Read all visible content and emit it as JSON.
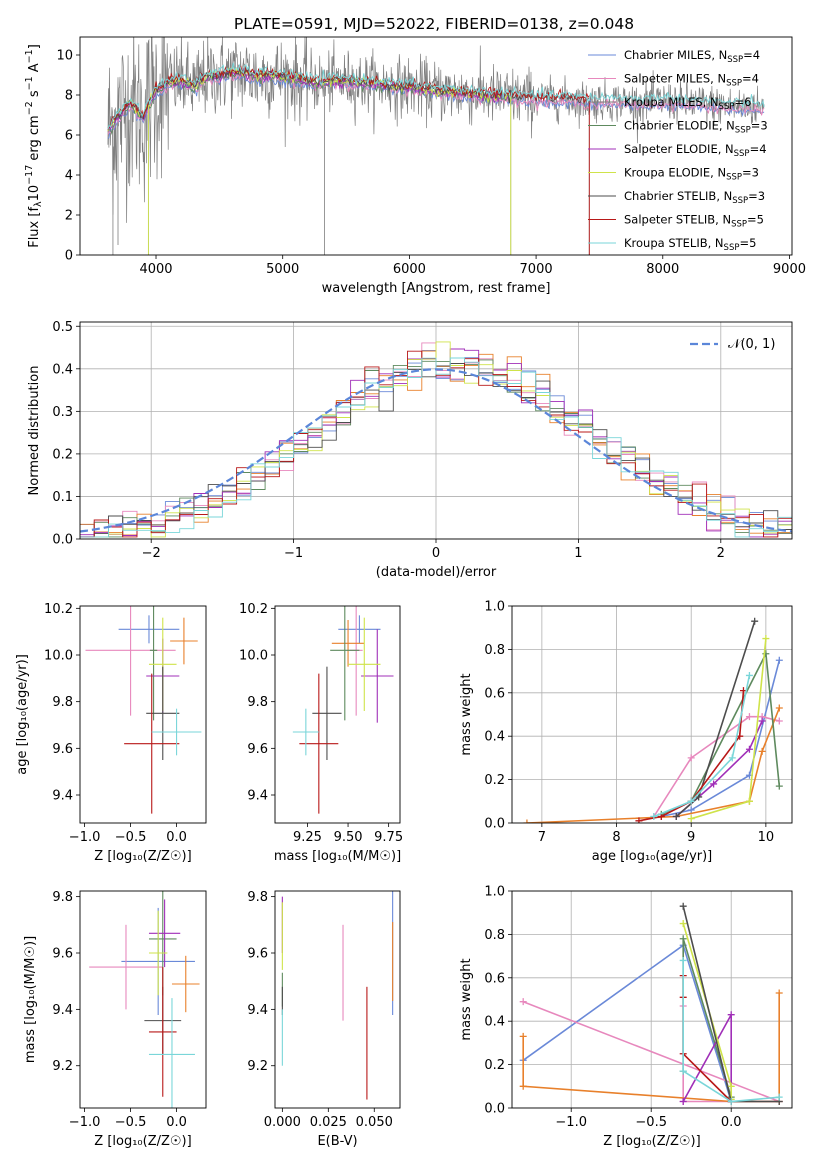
{
  "figure_title": "PLATE=0591, MJD=52022, FIBERID=0138, z=0.048",
  "colors": {
    "Chabrier MILES": "#6a89d8",
    "Salpeter MILES": "#e788bd",
    "Kroupa MILES": "#7f7f7f",
    "Chabrier ELODIE": "#5e8a5e",
    "Salpeter ELODIE": "#a02fb8",
    "Kroupa ELODIE": "#cfe34a",
    "Chabrier STELIB": "#4d4d4d",
    "Salpeter STELIB": "#b81818",
    "Kroupa STELIB": "#7ad6d9",
    "Orange": "#e8802b",
    "Normal": "#5b86d9"
  },
  "chart_data": [
    {
      "id": "spectrum",
      "type": "line",
      "xlabel": "wavelength [Angstrom, rest frame]",
      "ylabel_parts": [
        "Flux [f",
        "λ",
        "10",
        "−17",
        " erg cm",
        "−2",
        " s",
        "−1",
        " A",
        "−1",
        "]"
      ],
      "xlim": [
        3400,
        9020
      ],
      "ylim": [
        0,
        10.9
      ],
      "xticks": [
        4000,
        5000,
        6000,
        7000,
        8000,
        9000
      ],
      "yticks": [
        0,
        2,
        4,
        6,
        8,
        10
      ],
      "continuum": {
        "x": [
          3620,
          3700,
          3800,
          3900,
          3950,
          4000,
          4100,
          4200,
          4300,
          4400,
          4500,
          4600,
          4700,
          4800,
          4900,
          5000,
          5100,
          5200,
          5300,
          5400,
          5500,
          5600,
          5700,
          5800,
          5900,
          6000,
          6200,
          6400,
          6600,
          6800,
          7000,
          7200,
          7400,
          7600,
          7800,
          8000,
          8200,
          8400,
          8600,
          8800
        ],
        "y": [
          6.2,
          6.9,
          7.6,
          6.9,
          7.6,
          8.2,
          8.6,
          8.7,
          8.4,
          8.9,
          9.0,
          9.1,
          9.1,
          8.9,
          9.0,
          8.9,
          8.8,
          8.7,
          8.6,
          8.7,
          8.7,
          8.6,
          8.6,
          8.5,
          8.4,
          8.4,
          8.2,
          8.1,
          8.0,
          7.9,
          7.8,
          7.8,
          7.7,
          7.7,
          7.6,
          7.7,
          7.6,
          7.5,
          7.4,
          7.4
        ]
      },
      "legend": [
        {
          "base": "Chabrier MILES, N",
          "sub": "SSP",
          "tail": "=4"
        },
        {
          "base": "Salpeter MILES, N",
          "sub": "SSP",
          "tail": "=4"
        },
        {
          "base": "Kroupa MILES, N",
          "sub": "SSP",
          "tail": "=6"
        },
        {
          "base": "Chabrier ELODIE, N",
          "sub": "SSP",
          "tail": "=3"
        },
        {
          "base": "Salpeter ELODIE, N",
          "sub": "SSP",
          "tail": "=4"
        },
        {
          "base": "Kroupa ELODIE, N",
          "sub": "SSP",
          "tail": "=3"
        },
        {
          "base": "Chabrier STELIB, N",
          "sub": "SSP",
          "tail": "=3"
        },
        {
          "base": "Salpeter STELIB, N",
          "sub": "SSP",
          "tail": "=5"
        },
        {
          "base": "Kroupa STELIB, N",
          "sub": "SSP",
          "tail": "=5"
        }
      ]
    },
    {
      "id": "residuals",
      "type": "line",
      "xlabel": "(data-model)/error",
      "ylabel": "Normed distribution",
      "xlim": [
        -2.5,
        2.5
      ],
      "ylim": [
        0,
        0.51
      ],
      "xticks": [
        -2,
        -1,
        0,
        1,
        2
      ],
      "xticklabels": [
        "−2",
        "−1",
        "0",
        "1",
        "2"
      ],
      "yticks": [
        0.0,
        0.1,
        0.2,
        0.3,
        0.4,
        0.5
      ],
      "yticklabels": [
        "0.0",
        "0.1",
        "0.2",
        "0.3",
        "0.4",
        "0.5"
      ],
      "bin_width": 0.1,
      "normal_label": "𝒩(0, 1)"
    },
    {
      "id": "z_age",
      "type": "scatter",
      "xlabel": "Z [log₁₀(Z/Z☉)]",
      "ylabel": "age  [log₁₀(age/yr)]",
      "xlim": [
        -1.05,
        0.32
      ],
      "ylim": [
        9.28,
        10.21
      ],
      "xticks": [
        -1.0,
        -0.5,
        0.0
      ],
      "xticklabels": [
        "−1.0",
        "−0.5",
        "0.0"
      ],
      "yticks": [
        9.4,
        9.6,
        9.8,
        10.0,
        10.2
      ],
      "yticklabels": [
        "9.4",
        "9.6",
        "9.8",
        "10.0",
        "10.2"
      ],
      "points": [
        {
          "model": "Chabrier MILES",
          "x": -0.3,
          "y": 10.11,
          "xerr": 0.33,
          "yerr": 0.06
        },
        {
          "model": "Salpeter MILES",
          "x": -0.5,
          "y": 10.02,
          "xerr": 0.49,
          "yerr": 0.28
        },
        {
          "model": "Orange",
          "x": 0.08,
          "y": 10.06,
          "xerr": 0.15,
          "yerr": 0.1
        },
        {
          "model": "Chabrier ELODIE",
          "x": -0.25,
          "y": 10.02,
          "xerr": 0.04,
          "yerr": 0.3
        },
        {
          "model": "Salpeter ELODIE",
          "x": -0.15,
          "y": 9.91,
          "xerr": 0.18,
          "yerr": 0.16
        },
        {
          "model": "Kroupa ELODIE",
          "x": -0.15,
          "y": 9.96,
          "xerr": 0.15,
          "yerr": 0.2
        },
        {
          "model": "Chabrier STELIB",
          "x": -0.15,
          "y": 9.75,
          "xerr": 0.18,
          "yerr": 0.2
        },
        {
          "model": "Salpeter STELIB",
          "x": -0.27,
          "y": 9.62,
          "xerr": 0.3,
          "yerr": 0.3
        },
        {
          "model": "Kroupa STELIB",
          "x": 0.0,
          "y": 9.67,
          "xerr": 0.27,
          "yerr": 0.1
        }
      ]
    },
    {
      "id": "mass_age",
      "type": "scatter",
      "xlabel": "mass [log₁₀(M/M☉)]",
      "xlim": [
        9.05,
        9.82
      ],
      "ylim": [
        9.28,
        10.21
      ],
      "xticks": [
        9.25,
        9.5,
        9.75
      ],
      "xticklabels": [
        "9.25",
        "9.50",
        "9.75"
      ],
      "yticks": [
        9.4,
        9.6,
        9.8,
        10.0,
        10.2
      ],
      "yticklabels": [
        "9.4",
        "9.6",
        "9.8",
        "10.0",
        "10.2"
      ],
      "points": [
        {
          "model": "Chabrier MILES",
          "x": 9.57,
          "y": 10.11,
          "xerr": 0.13,
          "yerr": 0.06
        },
        {
          "model": "Salpeter MILES",
          "x": 9.55,
          "y": 10.02,
          "xerr": 0.04,
          "yerr": 0.28
        },
        {
          "model": "Orange",
          "x": 9.5,
          "y": 10.05,
          "xerr": 0.1,
          "yerr": 0.1
        },
        {
          "model": "Chabrier ELODIE",
          "x": 9.48,
          "y": 10.02,
          "xerr": 0.09,
          "yerr": 0.3
        },
        {
          "model": "Salpeter ELODIE",
          "x": 9.68,
          "y": 9.91,
          "xerr": 0.1,
          "yerr": 0.2
        },
        {
          "model": "Kroupa ELODIE",
          "x": 9.6,
          "y": 9.96,
          "xerr": 0.1,
          "yerr": 0.2
        },
        {
          "model": "Chabrier STELIB",
          "x": 9.37,
          "y": 9.75,
          "xerr": 0.09,
          "yerr": 0.2
        },
        {
          "model": "Salpeter STELIB",
          "x": 9.32,
          "y": 9.62,
          "xerr": 0.12,
          "yerr": 0.3
        },
        {
          "model": "Kroupa STELIB",
          "x": 9.24,
          "y": 9.67,
          "xerr": 0.08,
          "yerr": 0.1
        }
      ]
    },
    {
      "id": "age_weight",
      "type": "line",
      "xlabel": "age  [log₁₀(age/yr)]",
      "ylabel": "mass weight",
      "xlim": [
        6.6,
        10.35
      ],
      "ylim": [
        0,
        1.0
      ],
      "xticks": [
        7,
        8,
        9,
        10
      ],
      "yticks": [
        0.0,
        0.2,
        0.4,
        0.6,
        0.8,
        1.0
      ],
      "yticklabels": [
        "0.0",
        "0.2",
        "0.4",
        "0.6",
        "0.8",
        "1.0"
      ],
      "series": [
        {
          "model": "Chabrier MILES",
          "x": [
            8.6,
            9.0,
            9.78,
            10.18
          ],
          "y": [
            0.03,
            0.06,
            0.22,
            0.75
          ]
        },
        {
          "model": "Salpeter MILES",
          "x": [
            8.5,
            9.0,
            9.78,
            9.95,
            10.18
          ],
          "y": [
            0.03,
            0.3,
            0.49,
            0.49,
            0.47
          ]
        },
        {
          "model": "Orange",
          "x": [
            6.8,
            8.8,
            9.78,
            9.95,
            10.18
          ],
          "y": [
            0.0,
            0.03,
            0.1,
            0.33,
            0.53
          ]
        },
        {
          "model": "Chabrier ELODIE",
          "x": [
            8.6,
            9.0,
            10.0,
            10.18
          ],
          "y": [
            0.04,
            0.1,
            0.78,
            0.17
          ]
        },
        {
          "model": "Salpeter ELODIE",
          "x": [
            8.8,
            9.3,
            9.78,
            9.95
          ],
          "y": [
            0.03,
            0.18,
            0.34,
            0.47
          ]
        },
        {
          "model": "Kroupa ELODIE",
          "x": [
            9.0,
            9.78,
            10.0
          ],
          "y": [
            0.02,
            0.1,
            0.85
          ]
        },
        {
          "model": "Chabrier STELIB",
          "x": [
            8.8,
            9.1,
            9.85
          ],
          "y": [
            0.03,
            0.12,
            0.93
          ]
        },
        {
          "model": "Salpeter STELIB",
          "x": [
            8.3,
            8.6,
            9.0,
            9.65,
            9.7
          ],
          "y": [
            0.01,
            0.03,
            0.1,
            0.4,
            0.61
          ]
        },
        {
          "model": "Kroupa STELIB",
          "x": [
            8.5,
            9.0,
            9.55,
            9.78
          ],
          "y": [
            0.03,
            0.1,
            0.3,
            0.68
          ]
        }
      ]
    },
    {
      "id": "z_mass",
      "type": "scatter",
      "xlabel": "Z [log₁₀(Z/Z☉)]",
      "ylabel": "mass [log₁₀(M/M☉)]",
      "xlim": [
        -1.05,
        0.32
      ],
      "ylim": [
        9.05,
        9.82
      ],
      "xticks": [
        -1.0,
        -0.5,
        0.0
      ],
      "xticklabels": [
        "−1.0",
        "−0.5",
        "0.0"
      ],
      "yticks": [
        9.2,
        9.4,
        9.6,
        9.8
      ],
      "yticklabels": [
        "9.2",
        "9.4",
        "9.6",
        "9.8"
      ],
      "points": [
        {
          "model": "Chabrier MILES",
          "x": -0.2,
          "y": 9.57,
          "xerr": 0.4,
          "yerr": 0.19
        },
        {
          "model": "Salpeter MILES",
          "x": -0.55,
          "y": 9.55,
          "xerr": 0.4,
          "yerr": 0.15
        },
        {
          "model": "Orange",
          "x": 0.1,
          "y": 9.49,
          "xerr": 0.15,
          "yerr": 0.1
        },
        {
          "model": "Chabrier ELODIE",
          "x": -0.15,
          "y": 9.65,
          "xerr": 0.15,
          "yerr": 0.2
        },
        {
          "model": "Salpeter ELODIE",
          "x": -0.13,
          "y": 9.67,
          "xerr": 0.17,
          "yerr": 0.12
        },
        {
          "model": "Kroupa ELODIE",
          "x": -0.2,
          "y": 9.6,
          "xerr": 0.1,
          "yerr": 0.15
        },
        {
          "model": "Chabrier STELIB",
          "x": -0.15,
          "y": 9.36,
          "xerr": 0.2,
          "yerr": 0.12
        },
        {
          "model": "Salpeter STELIB",
          "x": -0.15,
          "y": 9.32,
          "xerr": 0.15,
          "yerr": 0.23
        },
        {
          "model": "Kroupa STELIB",
          "x": -0.05,
          "y": 9.24,
          "xerr": 0.25,
          "yerr": 0.2
        }
      ]
    },
    {
      "id": "ebv_mass",
      "type": "scatter",
      "xlabel": "E(B-V)",
      "xlim": [
        -0.004,
        0.064
      ],
      "ylim": [
        9.05,
        9.82
      ],
      "xticks": [
        0.0,
        0.025,
        0.05
      ],
      "xticklabels": [
        "0.000",
        "0.025",
        "0.050"
      ],
      "yticks": [
        9.2,
        9.4,
        9.6,
        9.8
      ],
      "yticklabels": [
        "9.2",
        "9.4",
        "9.6",
        "9.8"
      ],
      "points": [
        {
          "model": "Chabrier MILES",
          "x": 0.06,
          "y": 9.6,
          "xerr": 0,
          "yerr": 0.22
        },
        {
          "model": "Salpeter MILES",
          "x": 0.033,
          "y": 9.53,
          "xerr": 0,
          "yerr": 0.17
        },
        {
          "model": "Orange",
          "x": 0.06,
          "y": 9.57,
          "xerr": 0,
          "yerr": 0.14
        },
        {
          "model": "Chabrier ELODIE",
          "x": 0.0,
          "y": 9.47,
          "xerr": 0,
          "yerr": 0.06
        },
        {
          "model": "Salpeter ELODIE",
          "x": 0.0,
          "y": 9.7,
          "xerr": 0,
          "yerr": 0.1
        },
        {
          "model": "Kroupa ELODIE",
          "x": 0.0,
          "y": 9.66,
          "xerr": 0,
          "yerr": 0.12
        },
        {
          "model": "Chabrier STELIB",
          "x": 0.0,
          "y": 9.43,
          "xerr": 0,
          "yerr": 0.05
        },
        {
          "model": "Salpeter STELIB",
          "x": 0.046,
          "y": 9.28,
          "xerr": 0,
          "yerr": 0.2
        },
        {
          "model": "Kroupa STELIB",
          "x": 0.0,
          "y": 9.3,
          "xerr": 0,
          "yerr": 0.1
        }
      ]
    },
    {
      "id": "z_weight",
      "type": "line",
      "xlabel": "Z [log₁₀(Z/Z☉)]",
      "ylabel": "mass weight",
      "xlim": [
        -1.37,
        0.38
      ],
      "ylim": [
        0,
        1.0
      ],
      "xticks": [
        -1.0,
        -0.5,
        0.0
      ],
      "xticklabels": [
        "−1.0",
        "−0.5",
        "0.0"
      ],
      "yticks": [
        0.0,
        0.2,
        0.4,
        0.6,
        0.8,
        1.0
      ],
      "yticklabels": [
        "0.0",
        "0.2",
        "0.4",
        "0.6",
        "0.8",
        "1.0"
      ],
      "series": [
        {
          "model": "Chabrier MILES",
          "x": [
            -1.3,
            -0.3,
            0.0,
            0.3
          ],
          "y": [
            0.22,
            0.75,
            0.03,
            0.03
          ]
        },
        {
          "model": "Salpeter MILES",
          "x": [
            -1.3,
            0.3,
            -0.3,
            -0.3
          ],
          "y": [
            0.49,
            0.03,
            0.03,
            0.47
          ]
        },
        {
          "model": "Orange",
          "x": [
            -1.3,
            -1.3,
            0.0,
            0.3,
            0.3
          ],
          "y": [
            0.33,
            0.1,
            0.03,
            0.03,
            0.53
          ]
        },
        {
          "model": "Chabrier ELODIE",
          "x": [
            -0.3,
            -0.3,
            0.0
          ],
          "y": [
            0.17,
            0.78,
            0.05
          ]
        },
        {
          "model": "Salpeter ELODIE",
          "x": [
            -0.3,
            0.0,
            0.0
          ],
          "y": [
            0.03,
            0.43,
            0.03
          ]
        },
        {
          "model": "Kroupa ELODIE",
          "x": [
            -0.3,
            0.0,
            0.0
          ],
          "y": [
            0.85,
            0.1,
            0.04
          ]
        },
        {
          "model": "Chabrier STELIB",
          "x": [
            -0.3,
            0.0,
            0.3
          ],
          "y": [
            0.93,
            0.03,
            0.03
          ]
        },
        {
          "model": "Salpeter STELIB",
          "x": [
            -0.3,
            -0.3,
            -0.3,
            0.0
          ],
          "y": [
            0.61,
            0.51,
            0.25,
            0.03
          ]
        },
        {
          "model": "Kroupa STELIB",
          "x": [
            -0.3,
            -0.3,
            0.0,
            0.3
          ],
          "y": [
            0.68,
            0.17,
            0.03,
            0.05
          ]
        }
      ]
    }
  ]
}
